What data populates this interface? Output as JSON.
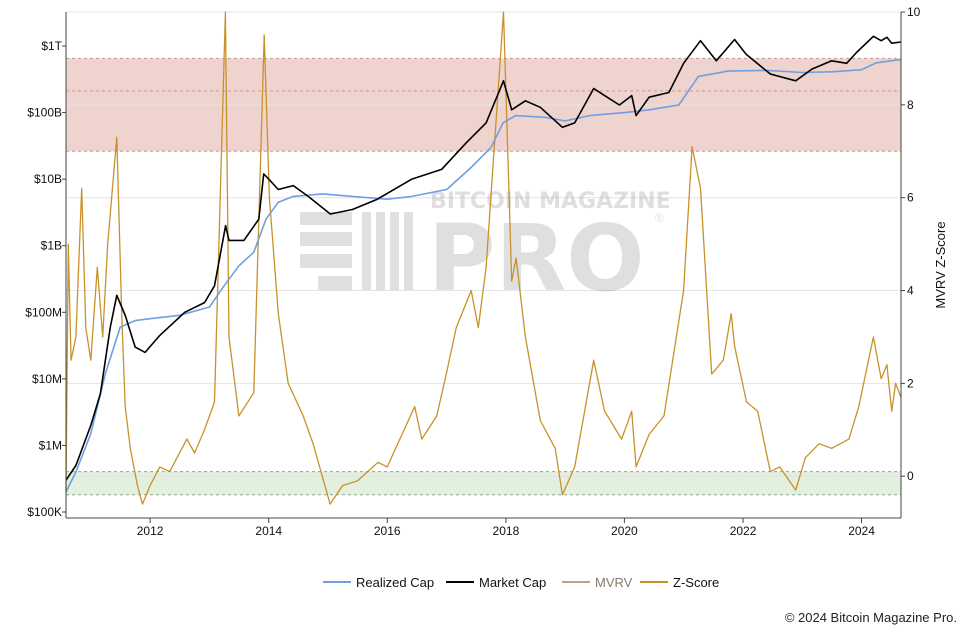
{
  "chart_data": {
    "type": "line",
    "x_range": [
      "2010-08-01",
      "2024-08-31"
    ],
    "x_ticks": [
      "2012",
      "2014",
      "2016",
      "2018",
      "2020",
      "2022",
      "2024"
    ],
    "left_axis": {
      "scale": "log",
      "ticks": [
        {
          "label": "$100K",
          "value": 100000
        },
        {
          "label": "$1M",
          "value": 1000000
        },
        {
          "label": "$10M",
          "value": 10000000
        },
        {
          "label": "$100M",
          "value": 100000000
        },
        {
          "label": "$1B",
          "value": 1000000000
        },
        {
          "label": "$10B",
          "value": 10000000000
        },
        {
          "label": "$100B",
          "value": 100000000000
        },
        {
          "label": "$1T",
          "value": 1000000000000
        }
      ]
    },
    "right_axis": {
      "label": "MVRV Z-Score",
      "ylim": [
        -0.9,
        10
      ],
      "ticks": [
        "0",
        "2",
        "4",
        "6",
        "8",
        "10"
      ]
    },
    "bands": [
      {
        "axis": "right",
        "from": 7,
        "to": 9,
        "color": "#efd3cf",
        "border": "#c89a94",
        "mid_line": 8.3
      },
      {
        "axis": "right",
        "from": -0.4,
        "to": 0.1,
        "color": "#e2f0dd",
        "border": "#8aa890"
      }
    ],
    "series": [
      {
        "name": "Realized Cap",
        "axis": "left",
        "color": "#6f9fe0",
        "points": [
          [
            "2010-08-01",
            200000
          ],
          [
            "2010-10-01",
            400000
          ],
          [
            "2011-01-01",
            1500000
          ],
          [
            "2011-04-01",
            12000000
          ],
          [
            "2011-07-01",
            60000000
          ],
          [
            "2011-10-01",
            75000000
          ],
          [
            "2012-01-01",
            80000000
          ],
          [
            "2012-07-01",
            90000000
          ],
          [
            "2013-01-01",
            120000000
          ],
          [
            "2013-04-01",
            250000000
          ],
          [
            "2013-07-01",
            500000000
          ],
          [
            "2013-10-01",
            800000000
          ],
          [
            "2013-12-15",
            2500000000
          ],
          [
            "2014-03-01",
            4500000000
          ],
          [
            "2014-06-01",
            5500000000
          ],
          [
            "2014-12-01",
            6000000000
          ],
          [
            "2015-06-01",
            5500000000
          ],
          [
            "2016-01-01",
            5000000000
          ],
          [
            "2016-06-01",
            5500000000
          ],
          [
            "2017-01-01",
            7000000000
          ],
          [
            "2017-06-01",
            15000000000
          ],
          [
            "2017-10-01",
            30000000000
          ],
          [
            "2017-12-15",
            70000000000
          ],
          [
            "2018-03-01",
            90000000000
          ],
          [
            "2018-09-01",
            85000000000
          ],
          [
            "2019-01-01",
            75000000000
          ],
          [
            "2019-06-01",
            90000000000
          ],
          [
            "2020-01-01",
            100000000000
          ],
          [
            "2020-06-01",
            110000000000
          ],
          [
            "2020-12-01",
            130000000000
          ],
          [
            "2021-04-01",
            350000000000
          ],
          [
            "2021-10-01",
            420000000000
          ],
          [
            "2022-06-01",
            430000000000
          ],
          [
            "2023-01-01",
            400000000000
          ],
          [
            "2023-07-01",
            410000000000
          ],
          [
            "2024-01-01",
            440000000000
          ],
          [
            "2024-04-01",
            560000000000
          ],
          [
            "2024-08-31",
            630000000000
          ]
        ]
      },
      {
        "name": "Market Cap",
        "axis": "left",
        "color": "#000000",
        "points": [
          [
            "2010-08-01",
            300000
          ],
          [
            "2010-10-01",
            500000
          ],
          [
            "2011-01-01",
            2000000
          ],
          [
            "2011-03-01",
            6000000
          ],
          [
            "2011-05-01",
            60000000
          ],
          [
            "2011-06-10",
            180000000
          ],
          [
            "2011-08-01",
            90000000
          ],
          [
            "2011-10-01",
            30000000
          ],
          [
            "2011-12-01",
            25000000
          ],
          [
            "2012-03-01",
            45000000
          ],
          [
            "2012-08-01",
            100000000
          ],
          [
            "2012-12-01",
            140000000
          ],
          [
            "2013-02-01",
            250000000
          ],
          [
            "2013-04-10",
            2000000000
          ],
          [
            "2013-05-01",
            1200000000
          ],
          [
            "2013-08-01",
            1200000000
          ],
          [
            "2013-11-01",
            2500000000
          ],
          [
            "2013-12-01",
            12000000000
          ],
          [
            "2014-01-01",
            10000000000
          ],
          [
            "2014-03-01",
            7000000000
          ],
          [
            "2014-06-01",
            8000000000
          ],
          [
            "2014-09-01",
            5500000000
          ],
          [
            "2015-01-15",
            3000000000
          ],
          [
            "2015-06-01",
            3500000000
          ],
          [
            "2015-11-01",
            5000000000
          ],
          [
            "2016-06-01",
            10000000000
          ],
          [
            "2016-12-01",
            14000000000
          ],
          [
            "2017-05-01",
            35000000000
          ],
          [
            "2017-09-01",
            70000000000
          ],
          [
            "2017-12-17",
            300000000000
          ],
          [
            "2018-02-06",
            110000000000
          ],
          [
            "2018-05-01",
            150000000000
          ],
          [
            "2018-08-01",
            120000000000
          ],
          [
            "2018-12-15",
            60000000000
          ],
          [
            "2019-03-01",
            70000000000
          ],
          [
            "2019-06-26",
            230000000000
          ],
          [
            "2019-09-01",
            180000000000
          ],
          [
            "2019-12-01",
            130000000000
          ],
          [
            "2020-02-15",
            180000000000
          ],
          [
            "2020-03-13",
            90000000000
          ],
          [
            "2020-06-01",
            170000000000
          ],
          [
            "2020-10-01",
            200000000000
          ],
          [
            "2020-12-31",
            550000000000
          ],
          [
            "2021-04-14",
            1200000000000
          ],
          [
            "2021-07-20",
            600000000000
          ],
          [
            "2021-11-10",
            1250000000000
          ],
          [
            "2022-01-20",
            750000000000
          ],
          [
            "2022-06-18",
            380000000000
          ],
          [
            "2022-11-21",
            300000000000
          ],
          [
            "2023-03-01",
            450000000000
          ],
          [
            "2023-07-01",
            600000000000
          ],
          [
            "2023-10-01",
            550000000000
          ],
          [
            "2023-12-01",
            800000000000
          ],
          [
            "2024-03-14",
            1400000000000
          ],
          [
            "2024-05-01",
            1200000000000
          ],
          [
            "2024-06-05",
            1350000000000
          ],
          [
            "2024-07-05",
            1100000000000
          ],
          [
            "2024-08-31",
            1150000000000
          ]
        ]
      },
      {
        "name": "MVRV",
        "axis": "right",
        "color": "#c8a08a",
        "points": []
      },
      {
        "name": "Z-Score",
        "axis": "right",
        "color": "#c8922a",
        "points": [
          [
            "2010-08-01",
            -0.3
          ],
          [
            "2010-08-15",
            5
          ],
          [
            "2010-09-01",
            2.5
          ],
          [
            "2010-10-01",
            3
          ],
          [
            "2010-11-06",
            6.2
          ],
          [
            "2010-12-01",
            3.2
          ],
          [
            "2011-01-01",
            2.5
          ],
          [
            "2011-02-10",
            4.5
          ],
          [
            "2011-03-15",
            3
          ],
          [
            "2011-04-15",
            5
          ],
          [
            "2011-06-10",
            7.3
          ],
          [
            "2011-07-10",
            3.5
          ],
          [
            "2011-08-01",
            1.5
          ],
          [
            "2011-09-01",
            0.6
          ],
          [
            "2011-10-15",
            -0.2
          ],
          [
            "2011-11-15",
            -0.6
          ],
          [
            "2012-01-01",
            -0.2
          ],
          [
            "2012-03-01",
            0.2
          ],
          [
            "2012-05-01",
            0.1
          ],
          [
            "2012-08-15",
            0.8
          ],
          [
            "2012-10-01",
            0.5
          ],
          [
            "2012-12-01",
            1.0
          ],
          [
            "2013-02-01",
            1.6
          ],
          [
            "2013-04-09",
            10
          ],
          [
            "2013-05-01",
            3
          ],
          [
            "2013-07-01",
            1.3
          ],
          [
            "2013-10-01",
            1.8
          ],
          [
            "2013-12-04",
            9.5
          ],
          [
            "2014-01-05",
            6
          ],
          [
            "2014-03-01",
            3.5
          ],
          [
            "2014-05-01",
            2
          ],
          [
            "2014-08-01",
            1.3
          ],
          [
            "2014-10-01",
            0.7
          ],
          [
            "2015-01-14",
            -0.6
          ],
          [
            "2015-04-01",
            -0.2
          ],
          [
            "2015-07-01",
            -0.1
          ],
          [
            "2015-11-05",
            0.3
          ],
          [
            "2016-01-01",
            0.2
          ],
          [
            "2016-06-18",
            1.5
          ],
          [
            "2016-08-01",
            0.8
          ],
          [
            "2016-11-01",
            1.3
          ],
          [
            "2017-01-05",
            2.3
          ],
          [
            "2017-03-01",
            3.2
          ],
          [
            "2017-06-01",
            4.0
          ],
          [
            "2017-07-15",
            3.2
          ],
          [
            "2017-09-01",
            4.5
          ],
          [
            "2017-12-17",
            10
          ],
          [
            "2018-02-06",
            4.2
          ],
          [
            "2018-03-05",
            4.7
          ],
          [
            "2018-05-01",
            3.0
          ],
          [
            "2018-08-01",
            1.2
          ],
          [
            "2018-11-01",
            0.6
          ],
          [
            "2018-12-15",
            -0.4
          ],
          [
            "2019-03-01",
            0.2
          ],
          [
            "2019-06-26",
            2.5
          ],
          [
            "2019-09-01",
            1.4
          ],
          [
            "2019-12-15",
            0.8
          ],
          [
            "2020-02-15",
            1.4
          ],
          [
            "2020-03-13",
            0.2
          ],
          [
            "2020-06-01",
            0.9
          ],
          [
            "2020-09-01",
            1.3
          ],
          [
            "2020-12-31",
            4
          ],
          [
            "2021-02-21",
            7.1
          ],
          [
            "2021-04-14",
            6.2
          ],
          [
            "2021-06-22",
            2.2
          ],
          [
            "2021-09-01",
            2.5
          ],
          [
            "2021-10-20",
            3.5
          ],
          [
            "2021-11-10",
            2.8
          ],
          [
            "2022-01-22",
            1.6
          ],
          [
            "2022-04-01",
            1.4
          ],
          [
            "2022-06-18",
            0.1
          ],
          [
            "2022-08-15",
            0.2
          ],
          [
            "2022-11-21",
            -0.3
          ],
          [
            "2023-01-20",
            0.4
          ],
          [
            "2023-04-15",
            0.7
          ],
          [
            "2023-07-01",
            0.6
          ],
          [
            "2023-10-15",
            0.8
          ],
          [
            "2023-12-15",
            1.5
          ],
          [
            "2024-03-14",
            3.0
          ],
          [
            "2024-05-01",
            2.1
          ],
          [
            "2024-06-05",
            2.4
          ],
          [
            "2024-07-05",
            1.4
          ],
          [
            "2024-07-29",
            2.0
          ],
          [
            "2024-08-31",
            1.7
          ]
        ]
      }
    ]
  },
  "watermark": {
    "line1": "BITCOIN MAGAZINE",
    "line2": "PRO",
    "trademark": "®"
  },
  "credit": "© 2024 Bitcoin Magazine Pro."
}
